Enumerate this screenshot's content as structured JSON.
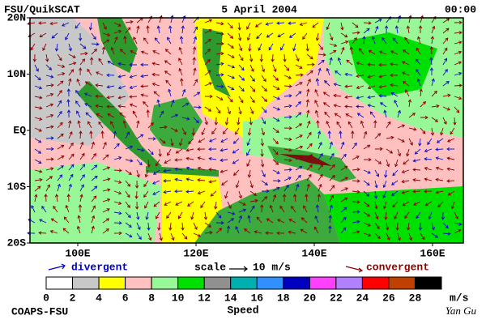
{
  "header": {
    "title": "FSU/QuikSCAT",
    "date": "5 April 2004",
    "time": "00:00"
  },
  "map": {
    "lat_labels": [
      "20N",
      "10N",
      "EQ",
      "10S",
      "20S"
    ],
    "lon_labels": [
      "100E",
      "120E",
      "140E",
      "160E"
    ]
  },
  "legend": {
    "divergent": "divergent",
    "scale": "scale",
    "scale_value": "10 m/s",
    "convergent": "convergent"
  },
  "colorbar": {
    "ticks": [
      0,
      2,
      4,
      6,
      8,
      10,
      12,
      14,
      16,
      18,
      20,
      22,
      24,
      26,
      28
    ],
    "colors": [
      "#ffffff",
      "#c8c8c8",
      "#ffff00",
      "#ffc0c0",
      "#98f898",
      "#00e000",
      "#909090",
      "#00b0b0",
      "#3090ff",
      "#0000c0",
      "#ff40ff",
      "#b080ff",
      "#ff0000",
      "#c04000",
      "#000000"
    ],
    "unit": "m/s",
    "label": "Speed"
  },
  "footer": {
    "credit": "COAPS-FSU",
    "author": "Yan Gu"
  }
}
